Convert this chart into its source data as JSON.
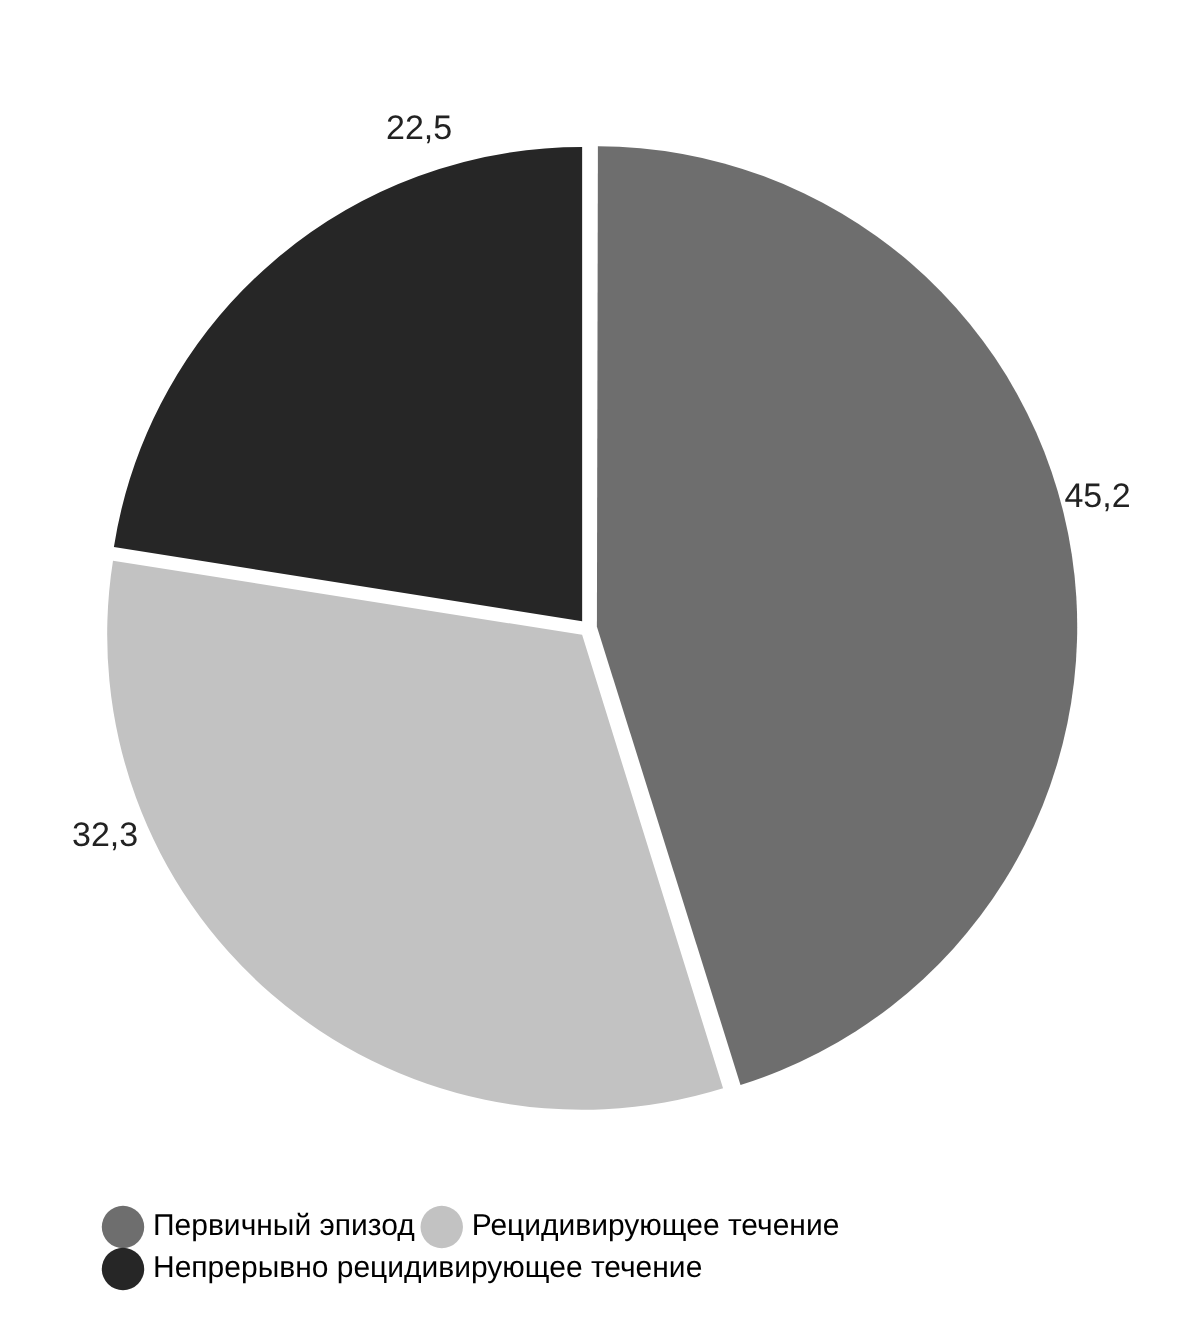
{
  "chart_data": {
    "type": "pie",
    "categories": [
      "Первичный эпизод",
      "Рецидивирующее течение",
      "Непрерывно рецидивирующее течение"
    ],
    "values": [
      45.2,
      32.3,
      22.5
    ],
    "colors": [
      "#6e6e6e",
      "#c2c2c2",
      "#262626"
    ],
    "value_labels": [
      "45,2",
      "32,3",
      "22,5"
    ],
    "legend": "bottom left"
  }
}
